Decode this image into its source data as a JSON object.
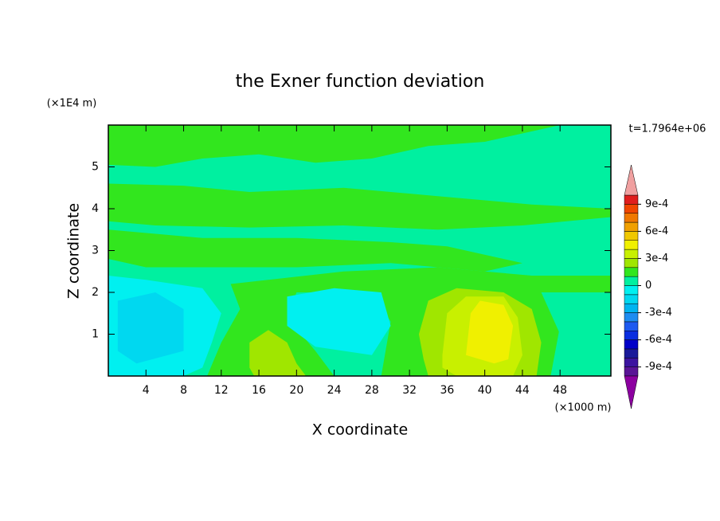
{
  "chart_data": {
    "type": "contour",
    "title": "the Exner function deviation",
    "x_label": "X coordinate",
    "y_label": "Z coordinate",
    "x_unit": "(×1000 m)",
    "y_unit": "(×1E4 m)",
    "annotation": "t=1.7964e+06",
    "xlim": [
      0,
      53.4
    ],
    "ylim": [
      0,
      6
    ],
    "xticks": [
      4,
      8,
      12,
      16,
      20,
      24,
      28,
      32,
      36,
      40,
      44,
      48
    ],
    "yticks": [
      1,
      2,
      3,
      4,
      5
    ],
    "colorbar": {
      "levels": [
        -0.001,
        -0.0009,
        -0.0008,
        -0.0007,
        -0.0006,
        -0.0005,
        -0.0004,
        -0.0003,
        -0.0002,
        -0.0001,
        0,
        0.0001,
        0.0002,
        0.0003,
        0.0004,
        0.0005,
        0.0006,
        0.0007,
        0.0008,
        0.0009,
        0.001
      ],
      "colors": [
        "#5a1496",
        "#3c14a0",
        "#1a1a9a",
        "#0000c8",
        "#0a2ee0",
        "#1e5af0",
        "#1e8cf0",
        "#00b4f0",
        "#00d8f0",
        "#00f0f0",
        "#00f0a0",
        "#32e61e",
        "#a0e600",
        "#c8f000",
        "#f0f000",
        "#f0c800",
        "#f0a000",
        "#f07800",
        "#f04600",
        "#e01e1e"
      ],
      "extend_colors": [
        "#8c00a0",
        "#f0a0a0"
      ],
      "ticks": [
        {
          "value": -0.0009,
          "label": "-9e-4"
        },
        {
          "value": -0.0006,
          "label": "-6e-4"
        },
        {
          "value": -0.0003,
          "label": "-3e-4"
        },
        0,
        {
          "value": 0.0003,
          "label": "3e-4"
        },
        {
          "value": 0.0006,
          "label": "6e-4"
        },
        {
          "value": 0.0009,
          "label": "9e-4"
        }
      ]
    }
  }
}
